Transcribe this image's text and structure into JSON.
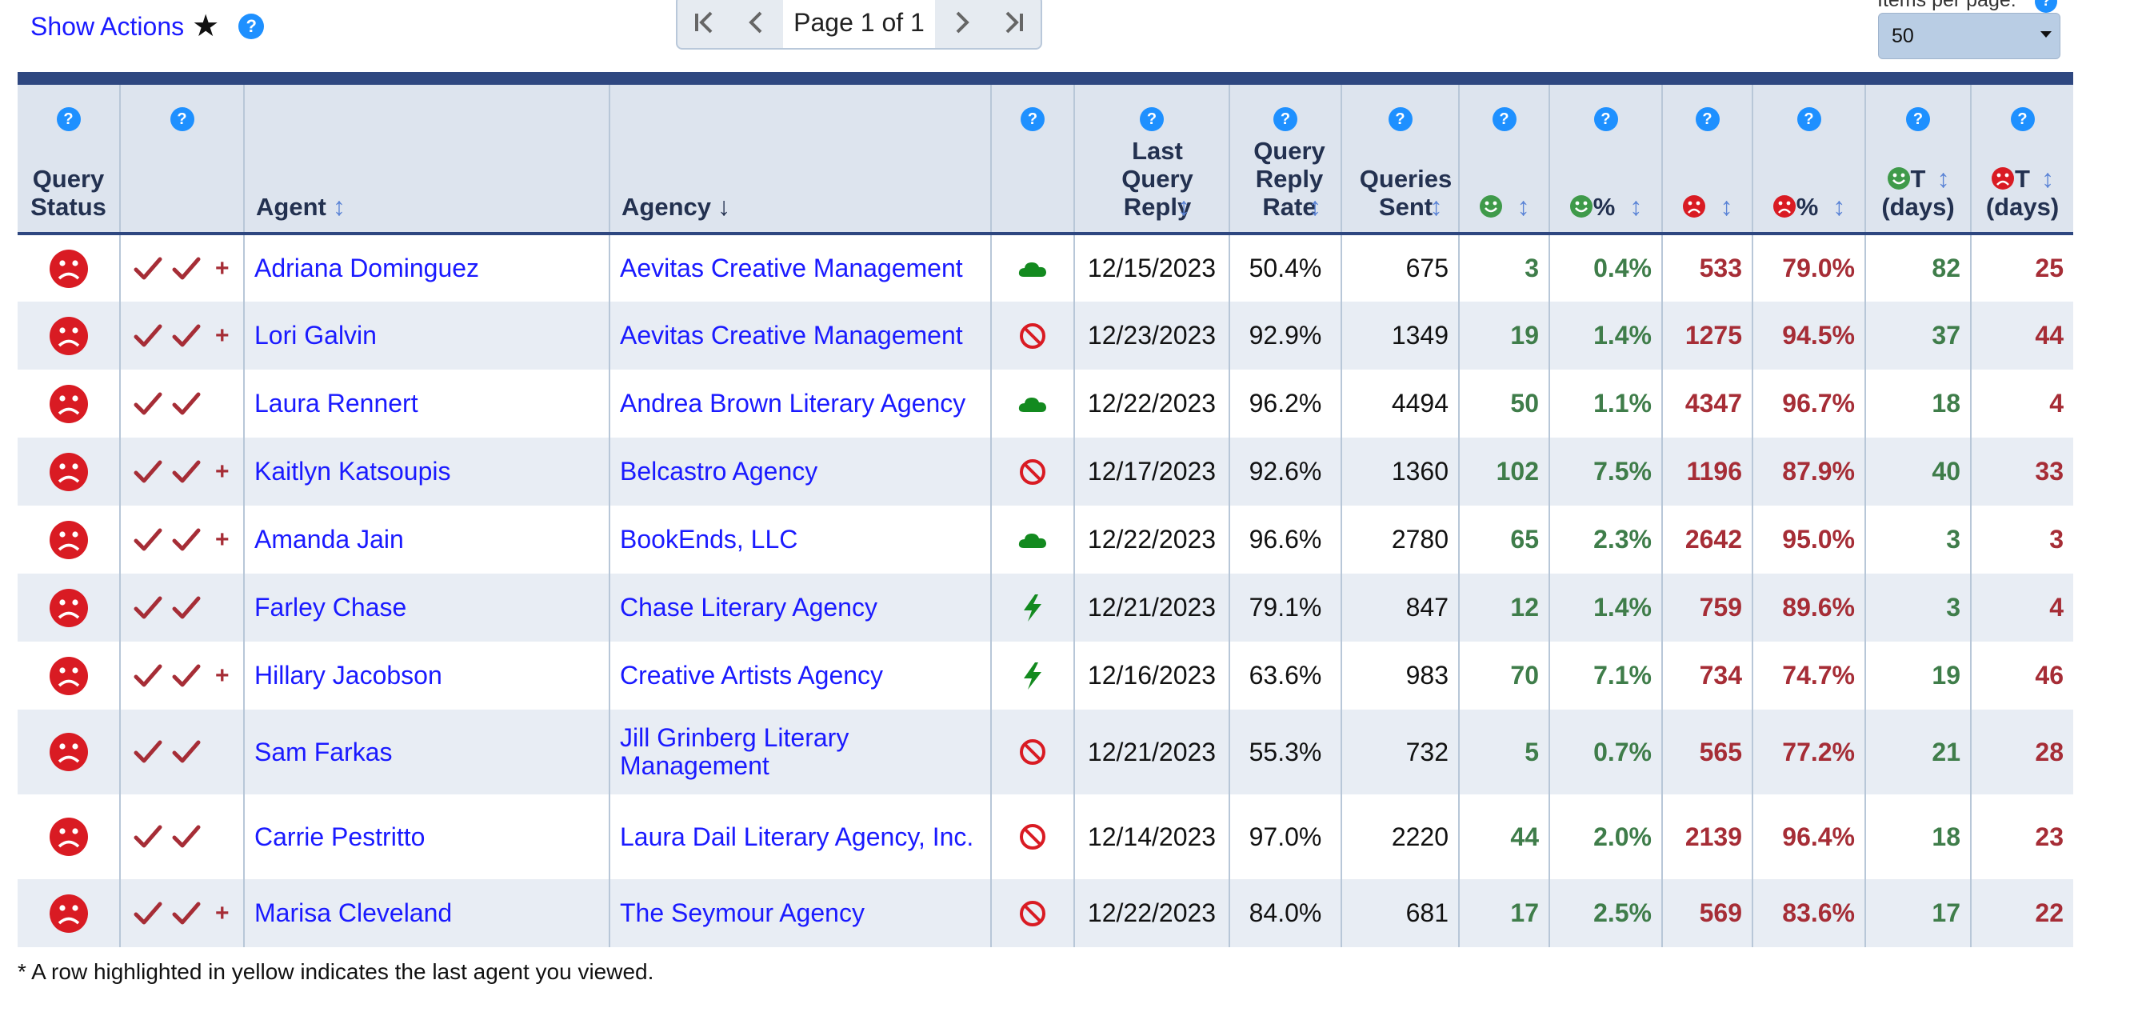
{
  "toolbar": {
    "show_actions_label": "Show Actions",
    "help_symbol": "?",
    "star_symbol": "★"
  },
  "pager": {
    "text": "Page 1 of 1"
  },
  "items_per_page": {
    "label": "Items per page:",
    "value": "50"
  },
  "table": {
    "headers": {
      "query_status": "Query Status",
      "agent": "Agent",
      "agency": "Agency",
      "last_query_reply": "Last Query Reply",
      "query_reply_rate": "Query Reply Rate",
      "queries_sent": "Queries Sent",
      "pct_suffix": "%",
      "t_suffix": "T",
      "days": "(days)",
      "sort_symbol": "↕",
      "sort_active_symbol": "↓"
    },
    "rows": [
      {
        "agent": "Adriana Dominguez",
        "agency": "Aevitas Creative Management",
        "response_icon": "cloud-icon",
        "checks": 2,
        "plus": "+",
        "last_reply": "12/15/2023",
        "reply_rate": "50.4%",
        "sent": "675",
        "pos": "3",
        "pos_pct": "0.4%",
        "neg": "533",
        "neg_pct": "79.0%",
        "pos_t": "82",
        "neg_t": "25"
      },
      {
        "agent": "Lori Galvin",
        "agency": "Aevitas Creative Management",
        "response_icon": "no-icon",
        "checks": 2,
        "plus": "+",
        "last_reply": "12/23/2023",
        "reply_rate": "92.9%",
        "sent": "1349",
        "pos": "19",
        "pos_pct": "1.4%",
        "neg": "1275",
        "neg_pct": "94.5%",
        "pos_t": "37",
        "neg_t": "44"
      },
      {
        "agent": "Laura Rennert",
        "agency": "Andrea Brown Literary Agency",
        "response_icon": "cloud-icon",
        "checks": 2,
        "plus": "",
        "last_reply": "12/22/2023",
        "reply_rate": "96.2%",
        "sent": "4494",
        "pos": "50",
        "pos_pct": "1.1%",
        "neg": "4347",
        "neg_pct": "96.7%",
        "pos_t": "18",
        "neg_t": "4"
      },
      {
        "agent": "Kaitlyn Katsoupis",
        "agency": "Belcastro Agency",
        "response_icon": "no-icon",
        "checks": 2,
        "plus": "+",
        "last_reply": "12/17/2023",
        "reply_rate": "92.6%",
        "sent": "1360",
        "pos": "102",
        "pos_pct": "7.5%",
        "neg": "1196",
        "neg_pct": "87.9%",
        "pos_t": "40",
        "neg_t": "33"
      },
      {
        "agent": "Amanda Jain",
        "agency": "BookEnds, LLC",
        "response_icon": "cloud-icon",
        "checks": 2,
        "plus": "+",
        "last_reply": "12/22/2023",
        "reply_rate": "96.6%",
        "sent": "2780",
        "pos": "65",
        "pos_pct": "2.3%",
        "neg": "2642",
        "neg_pct": "95.0%",
        "pos_t": "3",
        "neg_t": "3"
      },
      {
        "agent": "Farley Chase",
        "agency": "Chase Literary Agency",
        "response_icon": "lightning-icon",
        "checks": 2,
        "plus": "",
        "last_reply": "12/21/2023",
        "reply_rate": "79.1%",
        "sent": "847",
        "pos": "12",
        "pos_pct": "1.4%",
        "neg": "759",
        "neg_pct": "89.6%",
        "pos_t": "3",
        "neg_t": "4"
      },
      {
        "agent": "Hillary Jacobson",
        "agency": "Creative Artists Agency",
        "response_icon": "lightning-icon",
        "checks": 2,
        "plus": "+",
        "last_reply": "12/16/2023",
        "reply_rate": "63.6%",
        "sent": "983",
        "pos": "70",
        "pos_pct": "7.1%",
        "neg": "734",
        "neg_pct": "74.7%",
        "pos_t": "19",
        "neg_t": "46"
      },
      {
        "agent": "Sam Farkas",
        "agency": "Jill Grinberg Literary Management",
        "response_icon": "no-icon",
        "checks": 2,
        "plus": "",
        "last_reply": "12/21/2023",
        "reply_rate": "55.3%",
        "sent": "732",
        "pos": "5",
        "pos_pct": "0.7%",
        "neg": "565",
        "neg_pct": "77.2%",
        "pos_t": "21",
        "neg_t": "28"
      },
      {
        "agent": "Carrie Pestritto",
        "agency": "Laura Dail Literary Agency, Inc.",
        "response_icon": "no-icon",
        "checks": 2,
        "plus": "",
        "last_reply": "12/14/2023",
        "reply_rate": "97.0%",
        "sent": "2220",
        "pos": "44",
        "pos_pct": "2.0%",
        "neg": "2139",
        "neg_pct": "96.4%",
        "pos_t": "18",
        "neg_t": "23"
      },
      {
        "agent": "Marisa Cleveland",
        "agency": "The Seymour Agency",
        "response_icon": "no-icon",
        "checks": 2,
        "plus": "+",
        "last_reply": "12/22/2023",
        "reply_rate": "84.0%",
        "sent": "681",
        "pos": "17",
        "pos_pct": "2.5%",
        "neg": "569",
        "neg_pct": "83.6%",
        "pos_t": "17",
        "neg_t": "22"
      }
    ]
  },
  "footnote": "* A row highlighted in yellow indicates the last agent you viewed.",
  "colors": {
    "link": "#1a1aff",
    "positive": "#3f7d4a",
    "negative": "#a62d36",
    "header_bg": "#dde4ee",
    "header_band": "#2e4780",
    "help_blue": "#1e90ff",
    "frown_red": "#d91b23"
  }
}
